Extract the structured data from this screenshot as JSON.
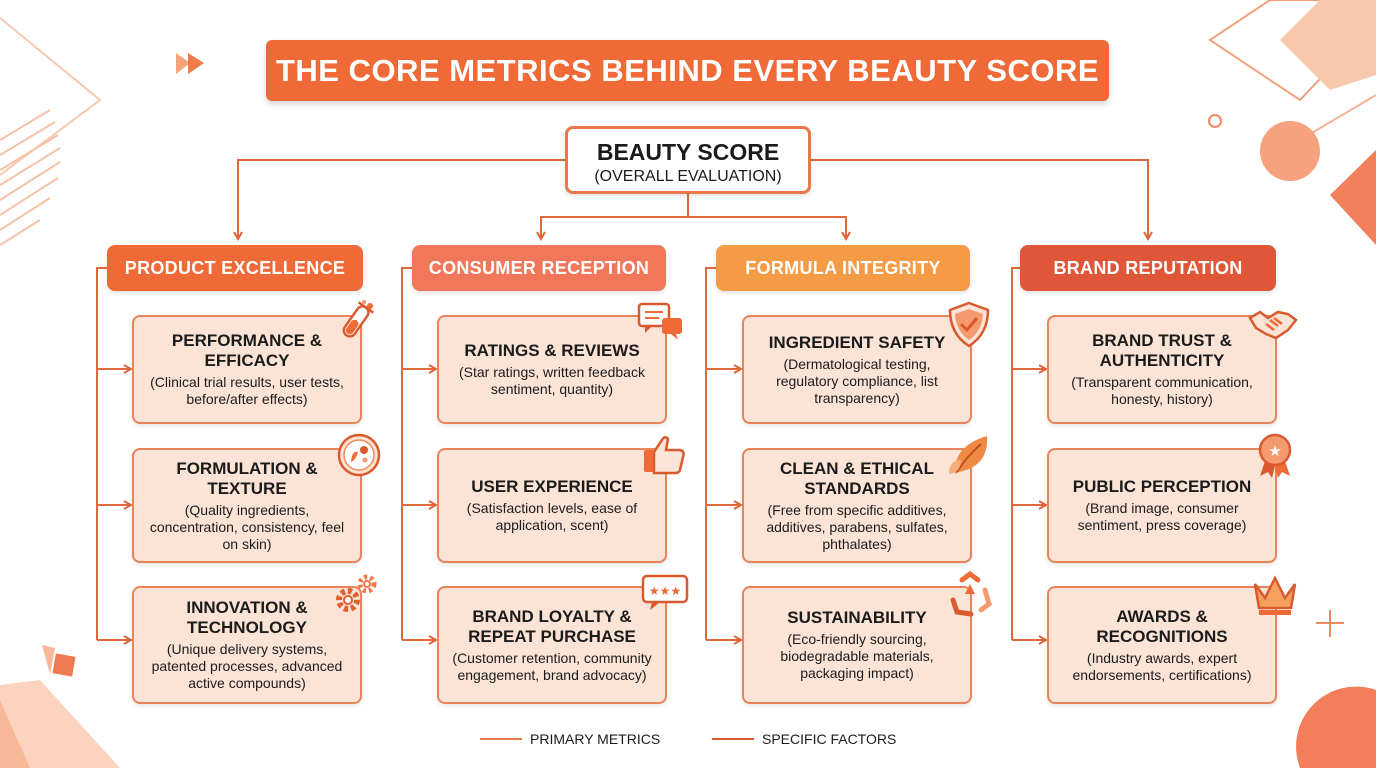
{
  "title": "THE CORE METRICS BEHIND EVERY BEAUTY SCORE",
  "root": {
    "title": "BEAUTY SCORE",
    "subtitle": "(OVERALL EVALUATION)"
  },
  "colors": {
    "accent": "#ef6a36",
    "primary_line": "#e8784a",
    "factor_line": "#d9592c",
    "card_fill": "#fbe3d6",
    "card_border": "#e8845a"
  },
  "categories": [
    {
      "label": "PRODUCT EXCELLENCE",
      "color": "#ef6a36",
      "metrics": [
        {
          "title": "PERFORMANCE & EFFICACY",
          "desc": "(Clinical trial results, user tests, before/after effects)",
          "icon": "test-tube-icon"
        },
        {
          "title": "FORMULATION & TEXTURE",
          "desc": "(Quality ingredients, concentration, consistency, feel on skin)",
          "icon": "microscope-slide-icon"
        },
        {
          "title": "INNOVATION & TECHNOLOGY",
          "desc": "(Unique delivery systems, patented processes, advanced active compounds)",
          "icon": "gears-icon"
        }
      ]
    },
    {
      "label": "CONSUMER RECEPTION",
      "color": "#f0775a",
      "metrics": [
        {
          "title": "RATINGS & REVIEWS",
          "desc": "(Star ratings, written feedback sentiment, quantity)",
          "icon": "chat-bubbles-icon"
        },
        {
          "title": "USER EXPERIENCE",
          "desc": "(Satisfaction levels, ease of application, scent)",
          "icon": "thumbs-up-icon"
        },
        {
          "title": "BRAND LOYALTY & REPEAT PURCHASE",
          "desc": "(Customer retention, community engagement, brand advocacy)",
          "icon": "star-bubble-icon"
        }
      ]
    },
    {
      "label": "FORMULA INTEGRITY",
      "color": "#f59a45",
      "metrics": [
        {
          "title": "INGREDIENT SAFETY",
          "desc": "(Dermatological testing, regulatory compliance, list transparency)",
          "icon": "shield-check-icon"
        },
        {
          "title": "CLEAN & ETHICAL STANDARDS",
          "desc": "(Free from specific additives, additives, parabens, sulfates, phthalates)",
          "icon": "leaf-icon"
        },
        {
          "title": "SUSTAINABILITY",
          "desc": "(Eco-friendly sourcing, biodegradable materials, packaging impact)",
          "icon": "recycle-icon"
        }
      ]
    },
    {
      "label": "BRAND REPUTATION",
      "color": "#df5638",
      "metrics": [
        {
          "title": "BRAND TRUST & AUTHENTICITY",
          "desc": "(Transparent communication, honesty, history)",
          "icon": "handshake-icon"
        },
        {
          "title": "PUBLIC PERCEPTION",
          "desc": "(Brand image, consumer sentiment, press coverage)",
          "icon": "award-ribbon-icon"
        },
        {
          "title": "AWARDS & RECOGNITIONS",
          "desc": "(Industry awards, expert endorsements, certifications)",
          "icon": "crown-icon"
        }
      ]
    }
  ],
  "legend": [
    {
      "label": "PRIMARY METRICS",
      "color": "#e8784a"
    },
    {
      "label": "SPECIFIC FACTORS",
      "color": "#d9592c"
    }
  ]
}
